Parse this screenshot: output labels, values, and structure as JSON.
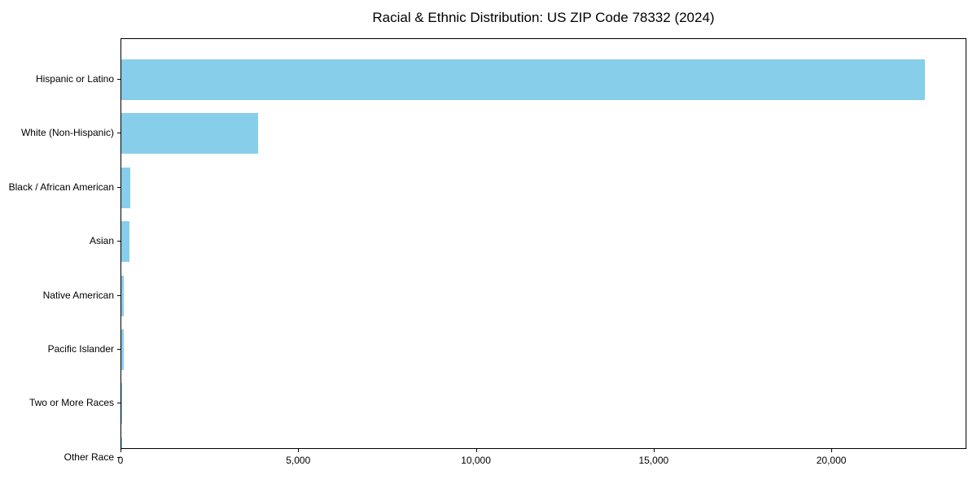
{
  "chart_data": {
    "type": "bar",
    "orientation": "horizontal",
    "title": "Racial & Ethnic Distribution: US ZIP Code 78332 (2024)",
    "xlabel": "",
    "ylabel": "",
    "categories": [
      "Hispanic or Latino",
      "White (Non-Hispanic)",
      "Black / African American",
      "Asian",
      "Native American",
      "Pacific Islander",
      "Two or More Races",
      "Other Race"
    ],
    "values": [
      22650,
      3850,
      250,
      230,
      80,
      75,
      25,
      8
    ],
    "xlim": [
      0,
      23800
    ],
    "xticks": [
      0,
      5000,
      10000,
      15000,
      20000
    ],
    "xtick_labels": [
      "0",
      "5,000",
      "10,000",
      "15,000",
      "20,000"
    ],
    "bar_color": "#87CEEB",
    "axis_color": "#000000",
    "background_color": "#ffffff",
    "grid": false,
    "legend_position": "none"
  }
}
